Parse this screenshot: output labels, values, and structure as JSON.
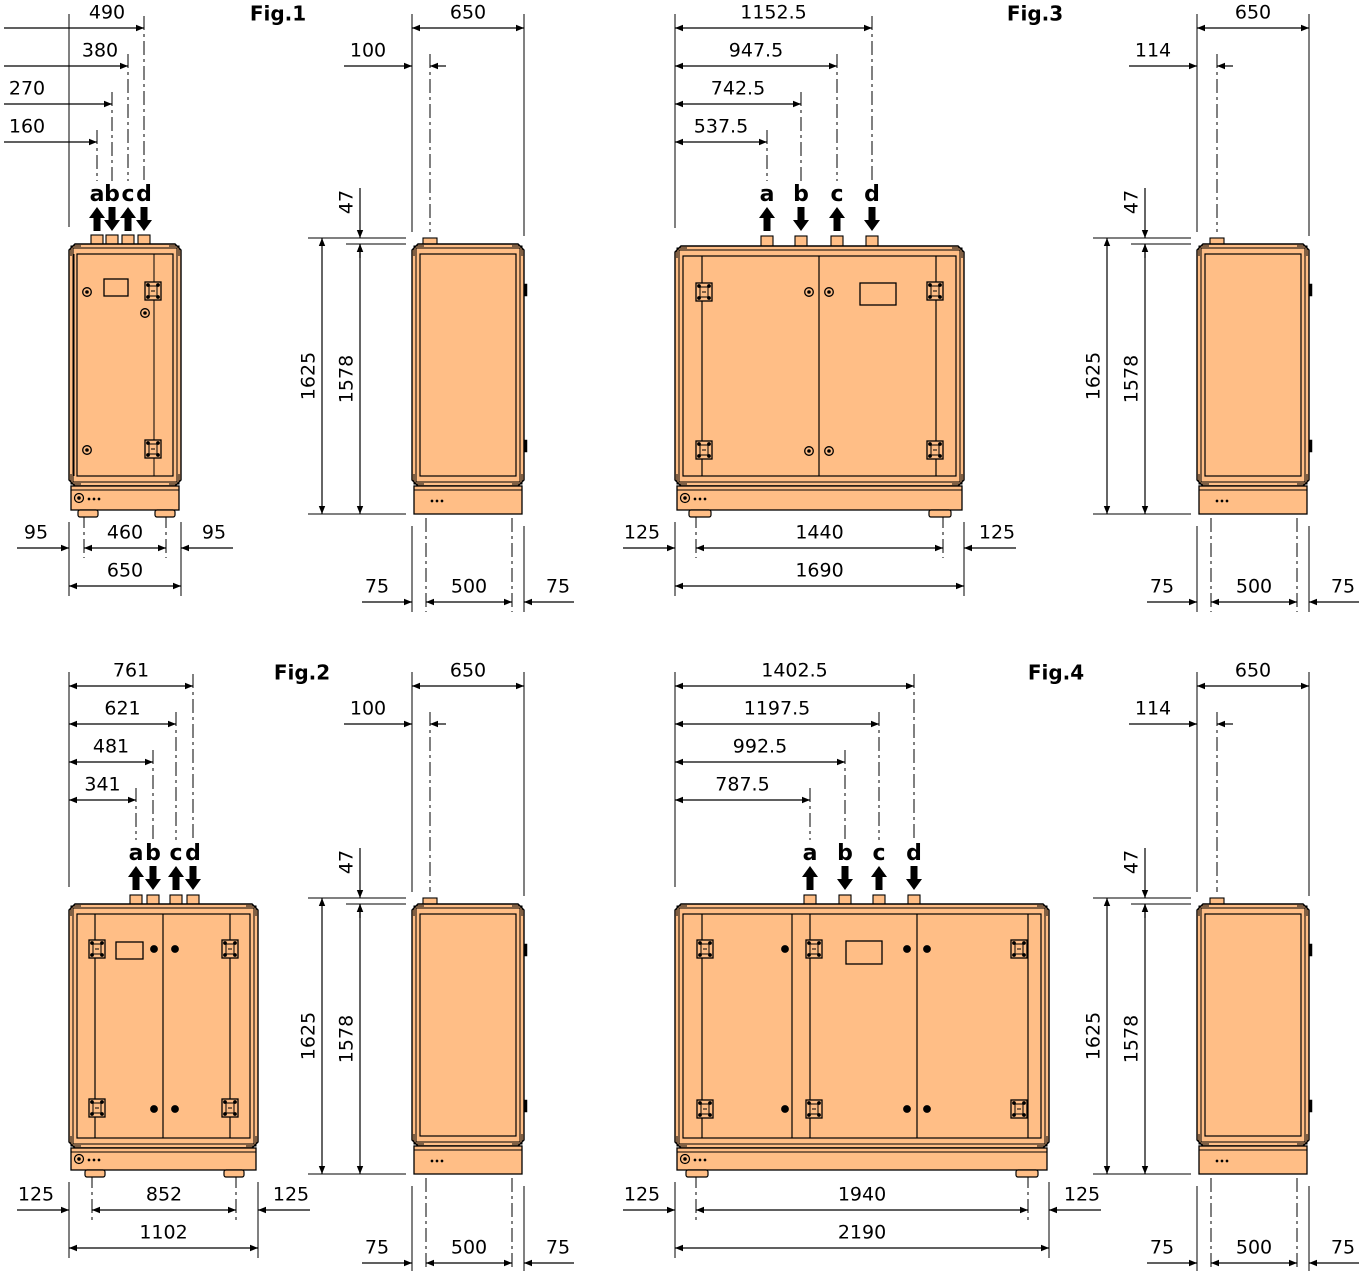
{
  "colors": {
    "cabinet": "#FFBE86",
    "edge": "#B87A45",
    "stroke": "#000000"
  },
  "figures": [
    {
      "title": "Fig.1",
      "front": {
        "pipe_offsets": [
          "160",
          "270",
          "380",
          "490"
        ],
        "pipe_labels": [
          "a",
          "b",
          "c",
          "d"
        ],
        "pipe_dirs": [
          "up",
          "down",
          "up",
          "down"
        ],
        "bottom_inner": "460",
        "left_margin": "95",
        "right_margin": "95",
        "total_width": "650"
      },
      "side": {
        "depth": "650",
        "pipe_offset": "100",
        "top_offset": "47",
        "height": "1625",
        "body_height": "1578",
        "bottom_left": "75",
        "bottom_inner": "500",
        "bottom_right": "75"
      }
    },
    {
      "title": "Fig.2",
      "front": {
        "pipe_offsets": [
          "341",
          "481",
          "621",
          "761"
        ],
        "pipe_labels": [
          "a",
          "b",
          "c",
          "d"
        ],
        "pipe_dirs": [
          "up",
          "down",
          "up",
          "down"
        ],
        "bottom_inner": "852",
        "left_margin": "125",
        "right_margin": "125",
        "total_width": "1102"
      },
      "side": {
        "depth": "650",
        "pipe_offset": "100",
        "top_offset": "47",
        "height": "1625",
        "body_height": "1578",
        "bottom_left": "75",
        "bottom_inner": "500",
        "bottom_right": "75"
      }
    },
    {
      "title": "Fig.3",
      "front": {
        "pipe_offsets": [
          "537.5",
          "742.5",
          "947.5",
          "1152.5"
        ],
        "pipe_labels": [
          "a",
          "b",
          "c",
          "d"
        ],
        "pipe_dirs": [
          "up",
          "down",
          "up",
          "down"
        ],
        "bottom_inner": "1440",
        "left_margin": "125",
        "right_margin": "125",
        "total_width": "1690"
      },
      "side": {
        "depth": "650",
        "pipe_offset": "114",
        "top_offset": "47",
        "height": "1625",
        "body_height": "1578",
        "bottom_left": "75",
        "bottom_inner": "500",
        "bottom_right": "75"
      }
    },
    {
      "title": "Fig.4",
      "front": {
        "pipe_offsets": [
          "787.5",
          "992.5",
          "1197.5",
          "1402.5"
        ],
        "pipe_labels": [
          "a",
          "b",
          "c",
          "d"
        ],
        "pipe_dirs": [
          "up",
          "down",
          "up",
          "down"
        ],
        "bottom_inner": "1940",
        "left_margin": "125",
        "right_margin": "125",
        "total_width": "2190"
      },
      "side": {
        "depth": "650",
        "pipe_offset": "114",
        "top_offset": "47",
        "height": "1625",
        "body_height": "1578",
        "bottom_left": "75",
        "bottom_inner": "500",
        "bottom_right": "75"
      }
    }
  ]
}
